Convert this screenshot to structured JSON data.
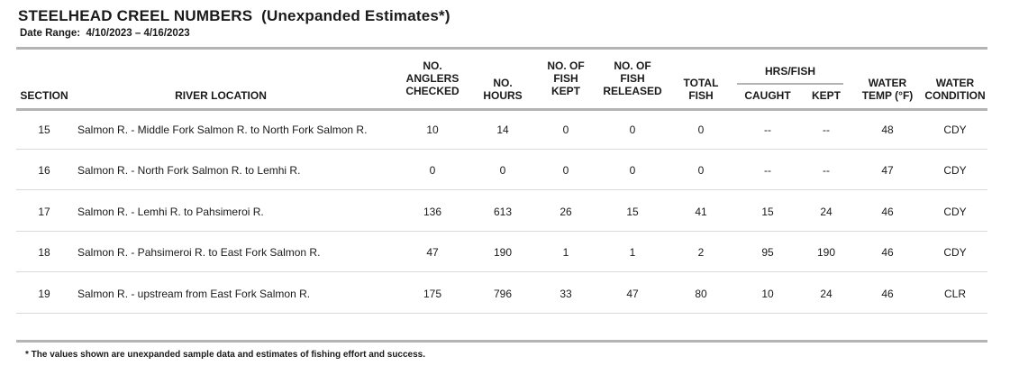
{
  "title": "STEELHEAD CREEL NUMBERS",
  "subtitle": "(Unexpanded Estimates*)",
  "date_range_label": "Date Range:",
  "date_range_value": "4/10/2023 – 4/16/2023",
  "headers": {
    "section": "SECTION",
    "river_location": "RIVER LOCATION",
    "anglers_checked": [
      "NO.",
      "ANGLERS",
      "CHECKED"
    ],
    "hours": [
      "NO.",
      "HOURS"
    ],
    "fish_kept": [
      "NO. OF",
      "FISH",
      "KEPT"
    ],
    "fish_released": [
      "NO. OF",
      "FISH",
      "RELEASED"
    ],
    "total_fish": [
      "TOTAL",
      "FISH"
    ],
    "hrs_per_fish": "HRS/FISH",
    "caught": "CAUGHT",
    "kept": "KEPT",
    "water_temp": [
      "WATER",
      "TEMP (°F)"
    ],
    "water_condition": [
      "WATER",
      "CONDITION"
    ]
  },
  "rows": [
    {
      "section": "15",
      "location": "Salmon R. - Middle Fork Salmon R. to North Fork Salmon R.",
      "anglers": "10",
      "hours": "14",
      "kept": "0",
      "released": "0",
      "total": "0",
      "hrs_caught": "--",
      "hrs_kept": "--",
      "temp": "48",
      "condition": "CDY"
    },
    {
      "section": "16",
      "location": "Salmon R. - North Fork Salmon R. to Lemhi R.",
      "anglers": "0",
      "hours": "0",
      "kept": "0",
      "released": "0",
      "total": "0",
      "hrs_caught": "--",
      "hrs_kept": "--",
      "temp": "47",
      "condition": "CDY"
    },
    {
      "section": "17",
      "location": "Salmon R. - Lemhi R. to Pahsimeroi R.",
      "anglers": "136",
      "hours": "613",
      "kept": "26",
      "released": "15",
      "total": "41",
      "hrs_caught": "15",
      "hrs_kept": "24",
      "temp": "46",
      "condition": "CDY"
    },
    {
      "section": "18",
      "location": "Salmon R. - Pahsimeroi R. to East Fork Salmon R.",
      "anglers": "47",
      "hours": "190",
      "kept": "1",
      "released": "1",
      "total": "2",
      "hrs_caught": "95",
      "hrs_kept": "190",
      "temp": "46",
      "condition": "CDY"
    },
    {
      "section": "19",
      "location": "Salmon R. - upstream from East Fork Salmon R.",
      "anglers": "175",
      "hours": "796",
      "kept": "33",
      "released": "47",
      "total": "80",
      "hrs_caught": "10",
      "hrs_kept": "24",
      "temp": "46",
      "condition": "CLR"
    }
  ],
  "footnote": "* The values shown are unexpanded sample data and estimates of fishing effort and success."
}
